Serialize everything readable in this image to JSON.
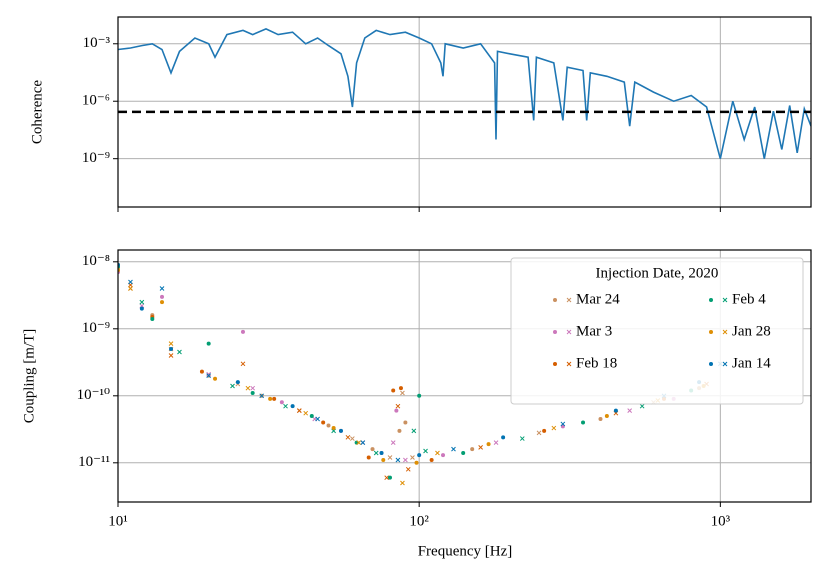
{
  "chart_data": [
    {
      "type": "line",
      "ylabel": "Coherence",
      "color": "#1f77b4",
      "log_x": true,
      "log_y": true,
      "grid": true,
      "x": [
        10,
        11,
        12,
        13,
        14,
        15,
        16,
        18,
        20,
        21,
        23,
        26,
        28,
        31,
        34,
        38,
        42,
        46,
        50,
        55,
        58,
        60,
        62,
        66,
        72,
        80,
        90,
        100,
        110,
        118,
        120,
        122,
        140,
        160,
        178,
        180,
        182,
        200,
        230,
        240,
        245,
        280,
        300,
        310,
        350,
        360,
        370,
        420,
        480,
        500,
        520,
        600,
        700,
        800,
        900,
        1000,
        1100,
        1200,
        1300,
        1400,
        1500,
        1600,
        1700,
        1800,
        1900,
        2000
      ],
      "values": [
        0.0005,
        0.0006,
        0.0008,
        0.001,
        0.0005,
        3e-05,
        0.0004,
        0.002,
        0.001,
        0.0002,
        0.003,
        0.005,
        0.003,
        0.006,
        0.003,
        0.004,
        0.001,
        0.002,
        0.0008,
        0.0003,
        2e-05,
        5e-07,
        0.0001,
        0.002,
        0.005,
        0.003,
        0.004,
        0.002,
        0.001,
        0.0001,
        2e-05,
        0.001,
        0.0006,
        0.001,
        0.0001,
        1e-08,
        0.0004,
        0.0003,
        0.0002,
        1e-07,
        0.0002,
        0.0001,
        1e-07,
        6e-05,
        4e-05,
        1e-07,
        3e-05,
        2e-05,
        1e-05,
        5e-08,
        1e-05,
        3e-06,
        1e-06,
        2e-06,
        5e-07,
        1e-09,
        1e-06,
        1e-08,
        5e-07,
        1e-09,
        3e-07,
        3e-09,
        6e-07,
        2e-09,
        4e-07,
        5e-08
      ],
      "reference_line": {
        "value": 2.8e-07,
        "color": "#000000",
        "style": "dashed"
      },
      "xlim": [
        10,
        2000
      ],
      "xticks": [
        10,
        100,
        1000
      ],
      "ylim": [
        3e-12,
        0.025
      ],
      "yticks": [
        {
          "value": 0.001,
          "label": "10⁻³"
        },
        {
          "value": 1e-06,
          "label": "10⁻⁶"
        },
        {
          "value": 1e-09,
          "label": "10⁻⁹"
        }
      ]
    },
    {
      "type": "scatter",
      "xlabel": "Frequency [Hz]",
      "ylabel": "Coupling [m/T]",
      "log_x": true,
      "log_y": true,
      "grid": true,
      "legend_title": "Injection Date, 2020",
      "legend": "upper right",
      "legend_columns": 2,
      "series": [
        {
          "name": "Mar 24",
          "color": "#ca9161",
          "x": [
            10,
            11,
            13,
            15,
            20,
            25,
            30,
            40,
            50,
            60,
            70,
            80,
            86,
            88,
            90,
            95,
            150,
            250,
            400,
            600,
            850
          ],
          "values": [
            8e-09,
            4e-09,
            1.6e-09,
            5e-10,
            2e-10,
            1.5e-10,
            1e-10,
            6e-11,
            3.6e-11,
            2.3e-11,
            1.6e-11,
            1.2e-11,
            3e-11,
            1.1e-10,
            4e-11,
            1.2e-11,
            1.6e-11,
            2.8e-11,
            4.5e-11,
            8e-11,
            1.3e-10
          ]
        },
        {
          "name": "Mar 3",
          "color": "#cc78bc",
          "x": [
            10,
            12,
            14,
            20,
            26,
            28,
            35,
            45,
            55,
            65,
            75,
            82,
            84,
            90,
            120,
            180,
            300,
            500,
            700
          ],
          "values": [
            7e-09,
            2.2e-09,
            3e-09,
            2.1e-10,
            9e-10,
            1.3e-10,
            8e-11,
            4.5e-11,
            3e-11,
            2e-11,
            1.4e-11,
            2e-11,
            6e-11,
            1.1e-11,
            1.3e-11,
            2e-11,
            3.5e-11,
            6e-11,
            9e-11
          ]
        },
        {
          "name": "Feb 18",
          "color": "#d55e00",
          "x": [
            10,
            11,
            13,
            15,
            19,
            26,
            33,
            40,
            48,
            58,
            68,
            78,
            82,
            85,
            87,
            92,
            110,
            160,
            260,
            450,
            650,
            900
          ],
          "values": [
            9e-09,
            4.5e-09,
            1.5e-09,
            4e-10,
            2.3e-10,
            3e-10,
            9e-11,
            6e-11,
            4e-11,
            2.4e-11,
            1.2e-11,
            6e-12,
            1.2e-10,
            7e-11,
            1.3e-10,
            8e-12,
            1.1e-11,
            1.7e-11,
            3e-11,
            5.5e-11,
            9e-11,
            1.5e-10
          ]
        },
        {
          "name": "Feb 4",
          "color": "#029e73",
          "x": [
            10,
            12,
            13,
            16,
            20,
            24,
            28,
            36,
            44,
            52,
            62,
            72,
            80,
            96,
            100,
            105,
            140,
            220,
            350,
            550,
            800
          ],
          "values": [
            8.5e-09,
            2.5e-09,
            1.4e-09,
            4.5e-10,
            6e-10,
            1.4e-10,
            1.1e-10,
            7e-11,
            5e-11,
            3e-11,
            2e-11,
            1.4e-11,
            6e-12,
            3e-11,
            1e-10,
            1.5e-11,
            1.4e-11,
            2.3e-11,
            4e-11,
            7e-11,
            1.2e-10
          ]
        },
        {
          "name": "Jan 28",
          "color": "#de8f05",
          "x": [
            10,
            11,
            14,
            15,
            21,
            27,
            32,
            42,
            52,
            63,
            76,
            88,
            98,
            115,
            170,
            280,
            420,
            620,
            880
          ],
          "values": [
            7.5e-09,
            4e-09,
            2.5e-09,
            6e-10,
            1.8e-10,
            1.3e-10,
            9e-11,
            5.5e-11,
            3.3e-11,
            2e-11,
            1.1e-11,
            5e-12,
            1e-11,
            1.4e-11,
            1.9e-11,
            3.3e-11,
            5e-11,
            8.5e-11,
            1.4e-10
          ]
        },
        {
          "name": "Jan 14",
          "color": "#0173b2",
          "x": [
            10,
            11,
            12,
            14,
            15,
            20,
            25,
            30,
            38,
            46,
            55,
            65,
            75,
            85,
            100,
            130,
            190,
            300,
            450,
            650,
            850,
            1000
          ],
          "values": [
            9e-09,
            5e-09,
            2e-09,
            4e-09,
            5e-10,
            2e-10,
            1.6e-10,
            1e-10,
            7e-11,
            4.5e-11,
            3e-11,
            2e-11,
            1.4e-11,
            1.1e-11,
            1.3e-11,
            1.6e-11,
            2.4e-11,
            3.8e-11,
            6e-11,
            1e-10,
            1.6e-10,
            3e-10
          ]
        }
      ],
      "xlim": [
        10,
        2000
      ],
      "xticks": [
        {
          "value": 10,
          "label": "10¹"
        },
        {
          "value": 100,
          "label": "10²"
        },
        {
          "value": 1000,
          "label": "10³"
        }
      ],
      "ylim": [
        2.6e-12,
        1.5e-08
      ],
      "yticks": [
        {
          "value": 1e-08,
          "label": "10⁻⁸"
        },
        {
          "value": 1e-09,
          "label": "10⁻⁹"
        },
        {
          "value": 1e-10,
          "label": "10⁻¹⁰"
        },
        {
          "value": 1e-11,
          "label": "10⁻¹¹"
        }
      ]
    }
  ]
}
